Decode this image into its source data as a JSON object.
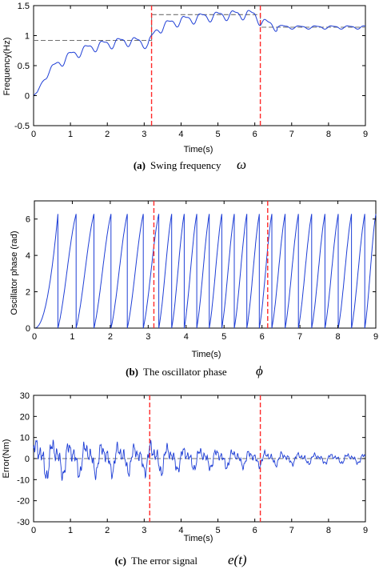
{
  "colors": {
    "signal": "#1f3fd6",
    "switch_line": "#ff2a2a",
    "reference": "#707070",
    "axis": "#000000"
  },
  "chart_data": [
    {
      "type": "line",
      "caption": {
        "label": "(a)",
        "text": "Swing frequency",
        "symbol": "ω"
      },
      "xlabel": "Time(s)",
      "ylabel": "Frequency(Hz)",
      "xlim": [
        0,
        9
      ],
      "ylim": [
        -0.5,
        1.5
      ],
      "xticks": [
        "0",
        "1",
        "2",
        "3",
        "4",
        "5",
        "6",
        "7",
        "8",
        "9"
      ],
      "yticks": [
        "-0.5",
        "0",
        "0.5",
        "1",
        "1.5"
      ],
      "switch_times": [
        3.2,
        6.15
      ],
      "reference": {
        "x": [
          0,
          3.2,
          3.2,
          6.15,
          6.15,
          9
        ],
        "y": [
          0.92,
          0.92,
          1.35,
          1.35,
          1.14,
          1.14
        ]
      },
      "series": [
        {
          "x": [
            0,
            0.1,
            0.2,
            0.3,
            0.4,
            0.5,
            0.6,
            0.7,
            0.8,
            0.9,
            1.0,
            1.2,
            1.4,
            1.6,
            1.8,
            2.0,
            2.2,
            2.4,
            2.6,
            2.8,
            3.0,
            3.1,
            3.2,
            3.3,
            3.4,
            3.6,
            3.8,
            4.0,
            4.2,
            4.4,
            4.6,
            4.8,
            5.0,
            5.2,
            5.4,
            5.6,
            5.8,
            6.0,
            6.15,
            6.3,
            6.5,
            6.7,
            7.0,
            7.5,
            8.0,
            8.5,
            9.0
          ],
          "y": [
            0,
            0.05,
            0.18,
            0.3,
            0.38,
            0.45,
            0.5,
            0.55,
            0.59,
            0.63,
            0.67,
            0.72,
            0.77,
            0.81,
            0.84,
            0.86,
            0.88,
            0.9,
            0.91,
            0.9,
            0.88,
            0.85,
            0.95,
            1.05,
            1.12,
            1.18,
            1.22,
            1.25,
            1.27,
            1.29,
            1.31,
            1.32,
            1.33,
            1.34,
            1.35,
            1.35,
            1.36,
            1.34,
            1.25,
            1.2,
            1.17,
            1.15,
            1.14,
            1.14,
            1.14,
            1.14,
            1.14
          ],
          "ripple": 0.07
        }
      ]
    },
    {
      "type": "line",
      "caption": {
        "label": "(b)",
        "text": "The oscillator phase",
        "symbol": "ϕ"
      },
      "xlabel": "Time(s)",
      "ylabel": "Oscillator phase (rad)",
      "xlim": [
        0,
        9
      ],
      "ylim": [
        0,
        7
      ],
      "xticks": [
        "0",
        "1",
        "2",
        "3",
        "4",
        "5",
        "6",
        "7",
        "8",
        "9"
      ],
      "yticks": [
        "0",
        "2",
        "4",
        "6"
      ],
      "switch_times": [
        3.15,
        6.15
      ],
      "series": [
        {
          "wrap_times": [
            0.62,
            1.1,
            1.57,
            2.02,
            2.45,
            2.87,
            3.28,
            3.62,
            3.95,
            4.28,
            4.61,
            4.94,
            5.27,
            5.6,
            5.93,
            6.26,
            6.61,
            6.96,
            7.31,
            7.66,
            8.01,
            8.36,
            8.71
          ],
          "phase_max": 6.28
        }
      ]
    },
    {
      "type": "line",
      "caption": {
        "label": "(c)",
        "text": "The error signal",
        "symbol": "e(t)"
      },
      "xlabel": "Time(s)",
      "ylabel": "Error(Nm)",
      "xlim": [
        0,
        9
      ],
      "ylim": [
        -30,
        30
      ],
      "xticks": [
        "0",
        "1",
        "2",
        "3",
        "4",
        "5",
        "6",
        "7",
        "8",
        "9"
      ],
      "yticks": [
        "-30",
        "-20",
        "-10",
        "0",
        "10",
        "20",
        "30"
      ],
      "switch_times": [
        3.15,
        6.15
      ],
      "reference_y": 0,
      "series": [
        {
          "envelope": {
            "t": [
              0,
              0.5,
              1,
              2,
              3,
              3.15,
              4,
              5,
              6,
              6.15,
              7,
              8,
              9
            ],
            "amp": [
              11,
              10,
              9,
              8,
              7,
              9,
              6,
              5,
              4,
              4,
              3,
              2.5,
              2.5
            ]
          }
        }
      ]
    }
  ]
}
